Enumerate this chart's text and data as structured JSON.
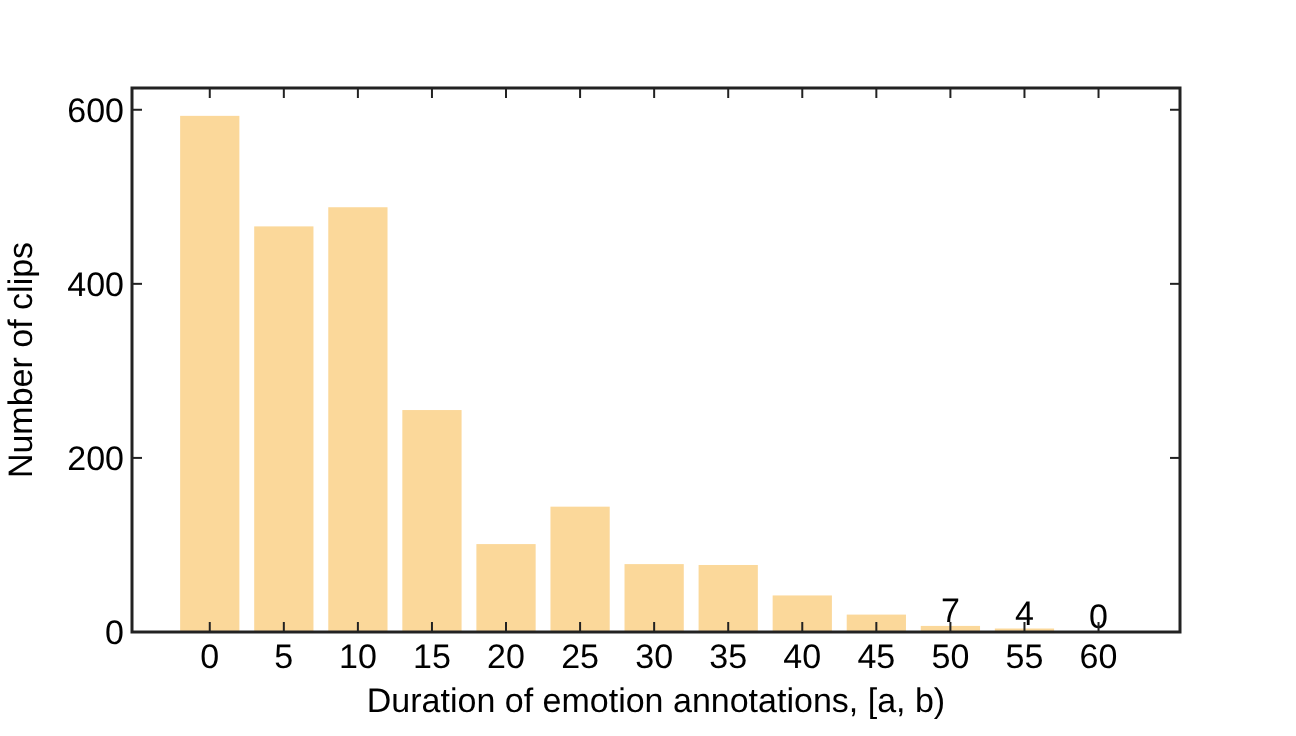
{
  "chart_data": {
    "type": "bar",
    "xlabel": "Duration of emotion annotations, [a, b)",
    "ylabel": "Number of clips",
    "categories": [
      "0",
      "5",
      "10",
      "15",
      "20",
      "25",
      "30",
      "35",
      "40",
      "45",
      "50",
      "55",
      "60"
    ],
    "values": [
      593,
      466,
      488,
      255,
      101,
      144,
      78,
      77,
      42,
      20,
      7,
      4,
      0
    ],
    "value_labels": [
      null,
      null,
      null,
      null,
      null,
      null,
      null,
      null,
      null,
      null,
      "7",
      "4",
      "0"
    ],
    "color": "#fbd89a",
    "ylim": [
      0,
      625
    ],
    "yticks": [
      0,
      200,
      400,
      600
    ],
    "grid": false
  }
}
